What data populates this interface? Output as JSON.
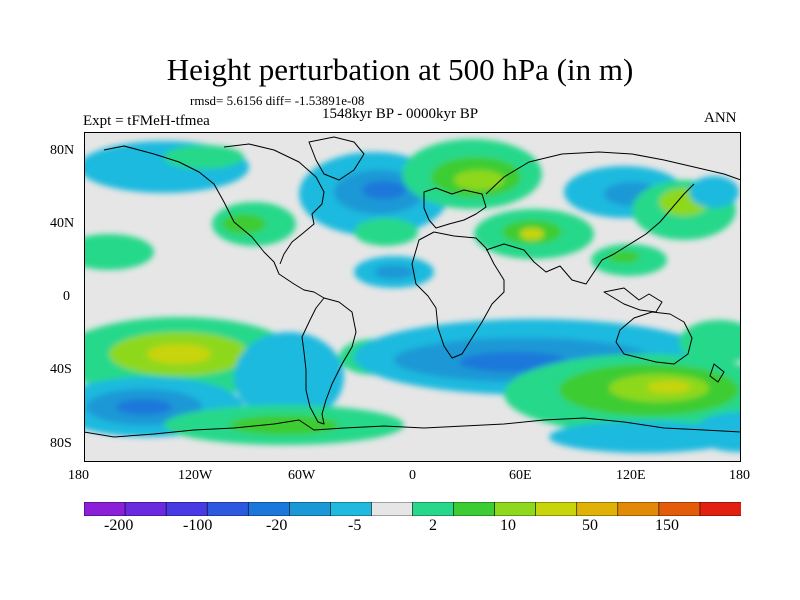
{
  "title": "Height perturbation at 500 hPa (in m)",
  "stats_line": "rmsd= 5.6156 diff= -1.53891e-08",
  "period_line": "1548kyr BP - 0000kyr BP",
  "experiment_label": "Expt = tFMeH-tfmea",
  "season_label": "ANN",
  "lat_labels": [
    "80N",
    "40N",
    "0",
    "40S",
    "80S"
  ],
  "lon_labels": [
    "180",
    "120W",
    "60W",
    "0",
    "60E",
    "120E",
    "180"
  ],
  "colorbar": {
    "labels": [
      "-200",
      "-100",
      "-20",
      "-5",
      "2",
      "10",
      "50",
      "150"
    ],
    "colors": [
      "#8b20d8",
      "#6a2ae0",
      "#4a3ae4",
      "#2d59e0",
      "#1b78da",
      "#1b98d6",
      "#1fbade",
      "#e6e6e6",
      "#28d88a",
      "#3ccc33",
      "#8ed81e",
      "#c8d40c",
      "#e0b208",
      "#e28a08",
      "#e45c0a",
      "#e22010"
    ]
  },
  "colors": {
    "land_background": "#e6e6e6",
    "coastline": "#000000"
  }
}
